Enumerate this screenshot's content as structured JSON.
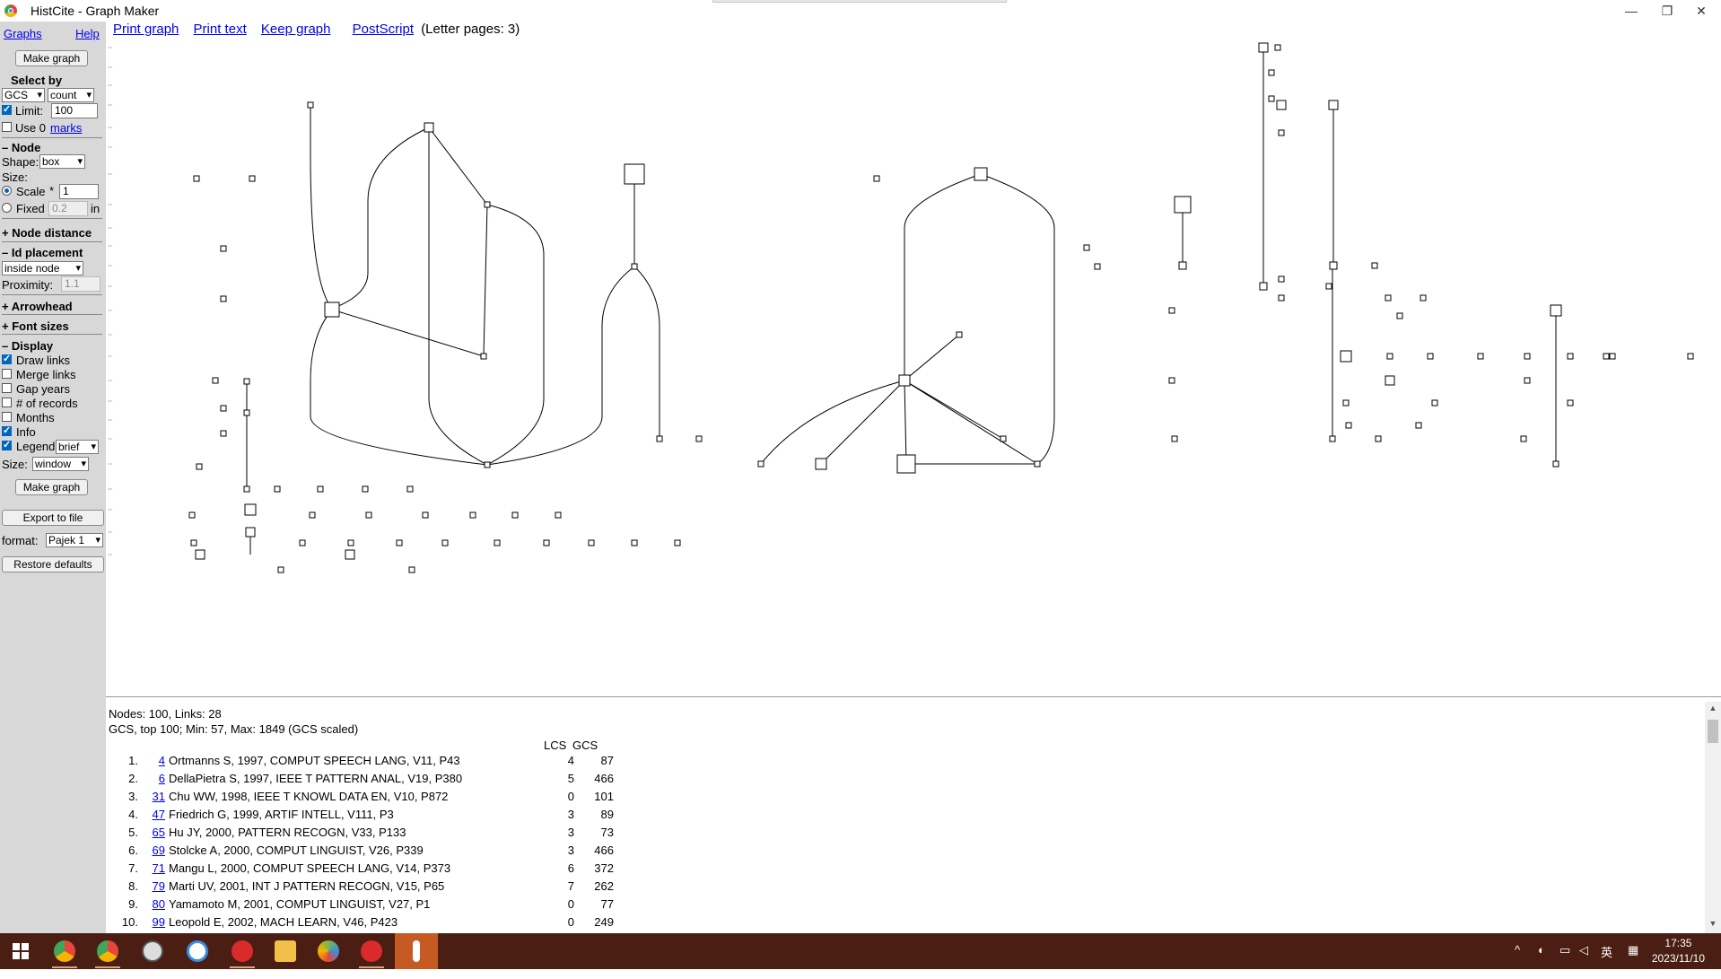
{
  "window": {
    "title": "HistCite - Graph Maker",
    "controls": {
      "minimize": "—",
      "restore": "❐",
      "close": "✕"
    }
  },
  "sidebar": {
    "graphs_link": "Graphs",
    "help_link": "Help",
    "make_graph_button": "Make graph",
    "select_by_label": "Select by",
    "select_field_value": "GCS",
    "select_sort_value": "count",
    "limit_label": "Limit:",
    "limit_value": "100",
    "use_label": "Use 0",
    "marks_link": "marks",
    "node_section": "– Node",
    "shape_label": "Shape:",
    "shape_value": "box",
    "size_label": "Size:",
    "scale_label": "Scale",
    "scale_op": "*",
    "scale_value": "1",
    "fixed_label": "Fixed",
    "fixed_value": "0.2",
    "fixed_unit": "in",
    "node_distance_section": "+ Node distance",
    "id_placement_section": "– Id placement",
    "id_placement_value": "inside node",
    "proximity_label": "Proximity:",
    "proximity_value": "1.1",
    "arrowhead_section": "+ Arrowhead",
    "font_sizes_section": "+ Font sizes",
    "display_section": "– Display",
    "draw_links_label": "Draw links",
    "merge_links_label": "Merge links",
    "gap_years_label": "Gap years",
    "num_records_label": "# of records",
    "months_label": "Months",
    "info_label": "Info",
    "legend_label": "Legend",
    "legend_value": "brief",
    "size2_label": "Size:",
    "size2_value": "window",
    "make_graph_button2": "Make graph",
    "export_button": "Export to file",
    "format_label": "format:",
    "format_value": "Pajek 1",
    "restore_button": "Restore defaults",
    "checkboxes": {
      "limit": true,
      "use_marks": false,
      "draw_links": true,
      "merge_links": false,
      "gap_years": false,
      "num_records": false,
      "months": false,
      "info": true,
      "legend": true
    },
    "radios": {
      "scale": true,
      "fixed": false
    }
  },
  "toolbar": {
    "print_graph": "Print graph",
    "print_text": "Print text",
    "keep_graph": "Keep graph",
    "postscript": "PostScript",
    "pages_note": "(Letter pages: 3)"
  },
  "info": {
    "summary1": "Nodes: 100, Links: 28",
    "summary2": "GCS, top 100; Min: 57, Max: 1849 (GCS scaled)",
    "col_lcs": "LCS",
    "col_gcs": "GCS",
    "rows": [
      {
        "num": "1.",
        "id": "4",
        "ref": "Ortmanns S, 1997, COMPUT SPEECH LANG, V11, P43",
        "lcs": "4",
        "gcs": "87"
      },
      {
        "num": "2.",
        "id": "6",
        "ref": "DellaPietra S, 1997, IEEE T PATTERN ANAL, V19, P380",
        "lcs": "5",
        "gcs": "466"
      },
      {
        "num": "3.",
        "id": "31",
        "ref": "Chu WW, 1998, IEEE T KNOWL DATA EN, V10, P872",
        "lcs": "0",
        "gcs": "101"
      },
      {
        "num": "4.",
        "id": "47",
        "ref": "Friedrich G, 1999, ARTIF INTELL, V111, P3",
        "lcs": "3",
        "gcs": "89"
      },
      {
        "num": "5.",
        "id": "65",
        "ref": "Hu JY, 2000, PATTERN RECOGN, V33, P133",
        "lcs": "3",
        "gcs": "73"
      },
      {
        "num": "6.",
        "id": "69",
        "ref": "Stolcke A, 2000, COMPUT LINGUIST, V26, P339",
        "lcs": "3",
        "gcs": "466"
      },
      {
        "num": "7.",
        "id": "71",
        "ref": "Mangu L, 2000, COMPUT SPEECH LANG, V14, P373",
        "lcs": "6",
        "gcs": "372"
      },
      {
        "num": "8.",
        "id": "79",
        "ref": "Marti UV, 2001, INT J PATTERN RECOGN, V15, P65",
        "lcs": "7",
        "gcs": "262"
      },
      {
        "num": "9.",
        "id": "80",
        "ref": "Yamamoto M, 2001, COMPUT LINGUIST, V27, P1",
        "lcs": "0",
        "gcs": "77"
      },
      {
        "num": "10.",
        "id": "99",
        "ref": "Leopold E, 2002, MACH LEARN, V46, P423",
        "lcs": "0",
        "gcs": "249"
      }
    ]
  },
  "taskbar": {
    "start_icon": "windows-icon",
    "apps": [
      "chrome-icon",
      "chrome-alt-icon",
      "assistant-icon",
      "network-app-icon",
      "red-app-icon",
      "file-explorer-icon",
      "palette-icon",
      "red-app-2-icon",
      "microphone-icon"
    ],
    "tray_lang": "英",
    "time": "17:35",
    "date": "2023/11/10"
  },
  "colors": {
    "sidebar_bg": "#d8d8d8",
    "link": "#0000ee",
    "taskbar_bg": "#4a1e12",
    "taskbar_active": "#c55a22"
  }
}
